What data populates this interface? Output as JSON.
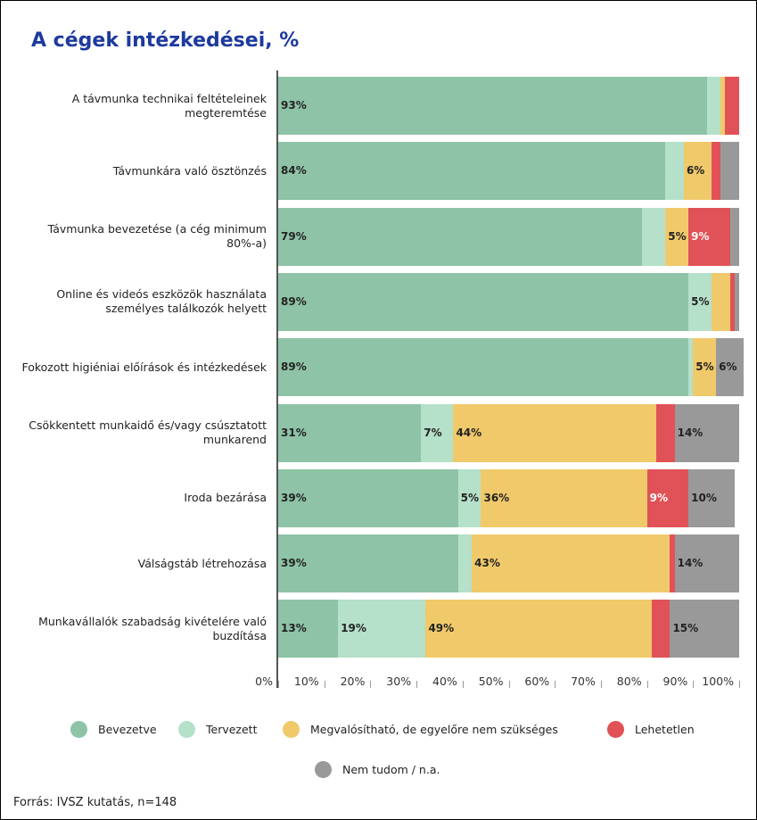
{
  "chart_data": {
    "type": "stacked_bar_horizontal",
    "title": "A cégek intézkedései, %",
    "source": "Forrás: IVSZ kutatás, n=148",
    "categories": [
      "A távmunka technikai feltételeinek megteremtése",
      "Távmunkára való ösztönzés",
      "Távmunka bevezetése (a cég minimum 80%-a)",
      "Online és videós eszközök használata személyes találkozók helyett",
      "Fokozott higiéniai előírások és intézkedések",
      "Csökkentett munkaidő és/vagy csúsztatott munkarend",
      "Iroda bezárása",
      "Válságstáb létrehozása",
      "Munkavállalók szabadság kivételére való buzdítása"
    ],
    "series": [
      {
        "name": "Bevezetve",
        "color": "#8ec3a7",
        "values": [
          93,
          84,
          79,
          89,
          89,
          31,
          39,
          39,
          13
        ],
        "value_labels": [
          "93%",
          "84%",
          "79%",
          "89%",
          "89%",
          "31%",
          "39%",
          "39%",
          "13%"
        ]
      },
      {
        "name": "Tervezett",
        "color": "#b5e0c9",
        "values": [
          3,
          4,
          5,
          5,
          1,
          7,
          5,
          3,
          19
        ],
        "value_labels": [
          null,
          null,
          null,
          "5%",
          null,
          "7%",
          "5%",
          null,
          "19%"
        ]
      },
      {
        "name": "Megvalósítható, de egyelőre nem szükséges",
        "color": "#f0c96a",
        "values": [
          1,
          6,
          5,
          4,
          5,
          44,
          36,
          43,
          49
        ],
        "value_labels": [
          null,
          "6%",
          "5%",
          null,
          "5%",
          "44%",
          "36%",
          "43%",
          "49%"
        ]
      },
      {
        "name": "Lehetetlen",
        "color": "#e05257",
        "values": [
          3,
          2,
          9,
          1,
          0,
          4,
          9,
          1,
          4
        ],
        "value_labels": [
          null,
          null,
          "9%",
          null,
          null,
          null,
          "9%",
          null,
          null
        ]
      },
      {
        "name": "Nem tudom / n.a.",
        "color": "#999999",
        "values": [
          0,
          4,
          2,
          1,
          6,
          14,
          10,
          14,
          15
        ],
        "value_labels": [
          null,
          null,
          null,
          null,
          "6%",
          "14%",
          "10%",
          "14%",
          "15%"
        ]
      }
    ],
    "xlim": [
      0,
      100
    ],
    "xticks": [
      {
        "value": 0,
        "label": "0%"
      },
      {
        "value": 10,
        "label": "10%"
      },
      {
        "value": 20,
        "label": "20%"
      },
      {
        "value": 30,
        "label": "30%"
      },
      {
        "value": 40,
        "label": "40%"
      },
      {
        "value": 50,
        "label": "50%"
      },
      {
        "value": 60,
        "label": "60%"
      },
      {
        "value": 70,
        "label": "70%"
      },
      {
        "value": 80,
        "label": "80%"
      },
      {
        "value": 90,
        "label": "90%"
      },
      {
        "value": 100,
        "label": "100%"
      }
    ]
  }
}
